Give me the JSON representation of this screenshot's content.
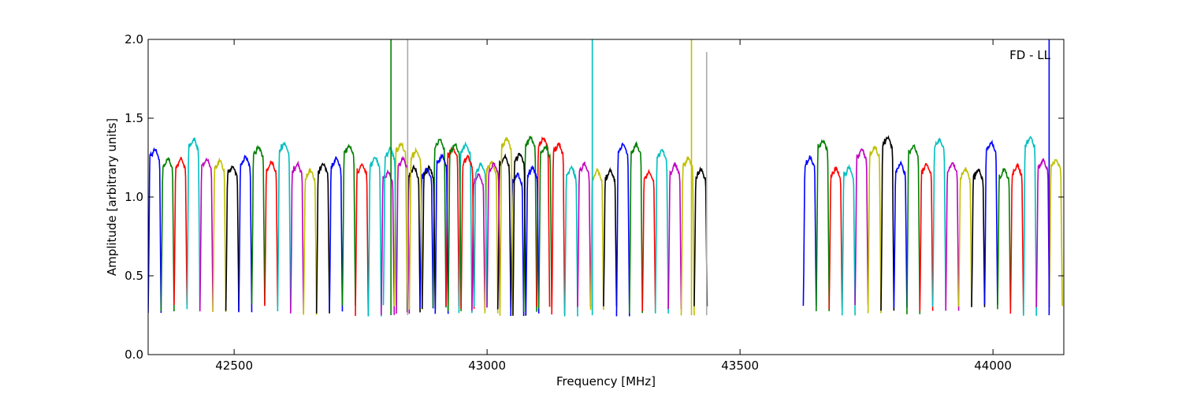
{
  "chart_data": {
    "type": "line",
    "title": "",
    "xlabel": "Frequency [MHz]",
    "ylabel": "Amplitude [arbitrary units]",
    "xlim": [
      42330,
      44140
    ],
    "ylim": [
      0.0,
      2.0
    ],
    "xticks": [
      42500,
      43000,
      43500,
      44000
    ],
    "xtick_labels": [
      "42500",
      "43000",
      "43500",
      "44000"
    ],
    "yticks": [
      0.0,
      0.5,
      1.0,
      1.5,
      2.0
    ],
    "ytick_labels": [
      "0.0",
      "0.5",
      "1.0",
      "1.5",
      "2.0"
    ],
    "grid": false,
    "legend": {
      "text": "FD - LL",
      "position": "top-right"
    },
    "color_cycle": [
      "#0000ff",
      "#008000",
      "#ff0000",
      "#00bfbf",
      "#bf00bf",
      "#bfbf00",
      "#000000"
    ],
    "channel_groups": [
      {
        "start": 42330,
        "width": 25.6,
        "count": 31
      },
      {
        "start": 42795,
        "width": 25.6,
        "count": 25
      },
      {
        "start": 43625,
        "width": 25.6,
        "count": 20
      }
    ],
    "channel_profile": {
      "edge_low": 0.28,
      "plateau": 1.2,
      "plateau_range": [
        1.12,
        1.37
      ]
    },
    "spikes": [
      {
        "x": 42810,
        "peak": 2.0,
        "color": "#008000"
      },
      {
        "x": 42843,
        "peak": 2.0,
        "color": "#aaaaaa"
      },
      {
        "x": 43208,
        "peak": 2.0,
        "color": "#00bfbf"
      },
      {
        "x": 43404,
        "peak": 2.0,
        "color": "#bfbf00"
      },
      {
        "x": 43434,
        "peak": 1.92,
        "color": "#aaaaaa"
      },
      {
        "x": 44111,
        "peak": 2.0,
        "color": "#0000ff"
      }
    ]
  }
}
